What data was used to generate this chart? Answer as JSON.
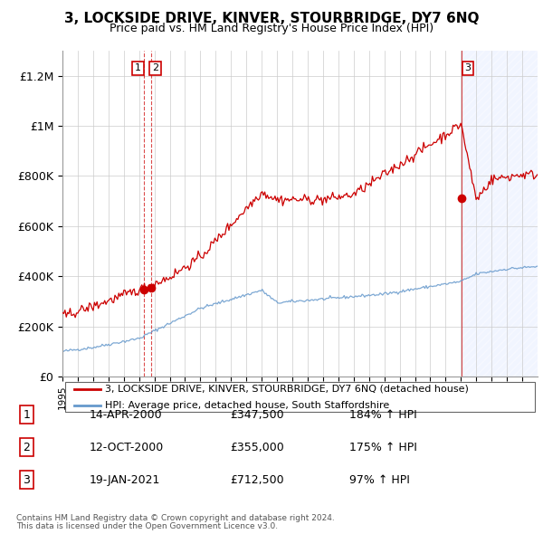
{
  "title": "3, LOCKSIDE DRIVE, KINVER, STOURBRIDGE, DY7 6NQ",
  "subtitle": "Price paid vs. HM Land Registry's House Price Index (HPI)",
  "legend_line1": "3, LOCKSIDE DRIVE, KINVER, STOURBRIDGE, DY7 6NQ (detached house)",
  "legend_line2": "HPI: Average price, detached house, South Staffordshire",
  "footer1": "Contains HM Land Registry data © Crown copyright and database right 2024.",
  "footer2": "This data is licensed under the Open Government Licence v3.0.",
  "transactions": [
    {
      "num": 1,
      "date": "14-APR-2000",
      "price": "£347,500",
      "hpi": "184% ↑ HPI"
    },
    {
      "num": 2,
      "date": "12-OCT-2000",
      "price": "£355,000",
      "hpi": "175% ↑ HPI"
    },
    {
      "num": 3,
      "date": "19-JAN-2021",
      "price": "£712,500",
      "hpi": "97% ↑ HPI"
    }
  ],
  "hpi_color": "#6699cc",
  "price_color": "#cc0000",
  "vline_color": "#cc0000",
  "shade_color": "#ddeeff",
  "ylim": [
    0,
    1300000
  ],
  "yticks": [
    0,
    200000,
    400000,
    600000,
    800000,
    1000000,
    1200000
  ],
  "ytick_labels": [
    "£0",
    "£200K",
    "£400K",
    "£600K",
    "£800K",
    "£1M",
    "£1.2M"
  ],
  "year_start": 1995,
  "year_end": 2026
}
